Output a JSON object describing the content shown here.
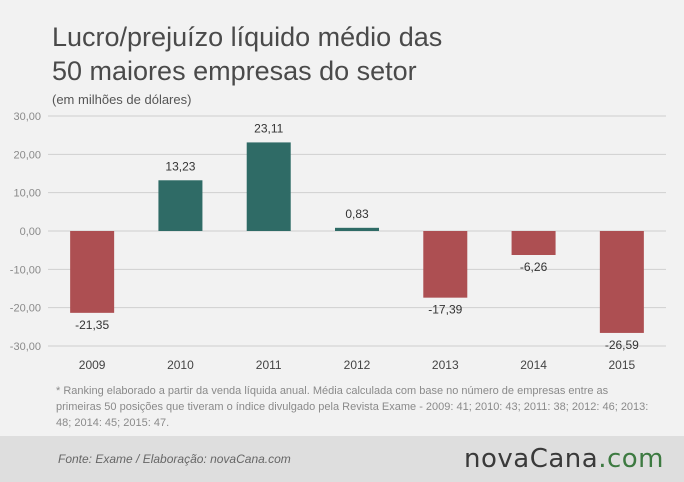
{
  "title_line1": "Lucro/prejuízo líquido médio das",
  "title_line2": "50 maiores empresas do setor",
  "subtitle": "(em milhões de dólares)",
  "footnote": "* Ranking elaborado a partir da venda líquida anual. Média calculada com base no número de empresas entre as primeiras 50 posições que tiveram o índice divulgado pela Revista Exame - 2009: 41; 2010: 43; 2011: 38; 2012: 46; 2013: 48; 2014: 45; 2015: 47.",
  "source": "Fonte:  Exame  / Elaboração:  novaCana.com",
  "logo_part1": "nova",
  "logo_part2": "Cana",
  "logo_part3": ".com",
  "colors": {
    "positive": "#2f6b66",
    "negative": "#ad4f52",
    "grid": "#cfcfcf",
    "logo_green": "#3d7a41"
  },
  "chart_data": {
    "type": "bar",
    "categories": [
      "2009",
      "2010",
      "2011",
      "2012",
      "2013",
      "2014",
      "2015"
    ],
    "values": [
      -21.35,
      13.23,
      23.11,
      0.83,
      -17.39,
      -6.26,
      -26.59
    ],
    "value_labels": [
      "-21,35",
      "13,23",
      "23,11",
      "0,83",
      "-17,39",
      "-6,26",
      "-26,59"
    ],
    "yticks": [
      30,
      20,
      10,
      0,
      -10,
      -20,
      -30
    ],
    "ytick_labels": [
      "30,00",
      "20,00",
      "10,00",
      "0,00",
      "-10,00",
      "-20,00",
      "-30,00"
    ],
    "ylim": [
      -30,
      30
    ],
    "grid": true,
    "title": "Lucro/prejuízo líquido médio das 50 maiores empresas do setor",
    "ylabel": "(em milhões de dólares)"
  }
}
